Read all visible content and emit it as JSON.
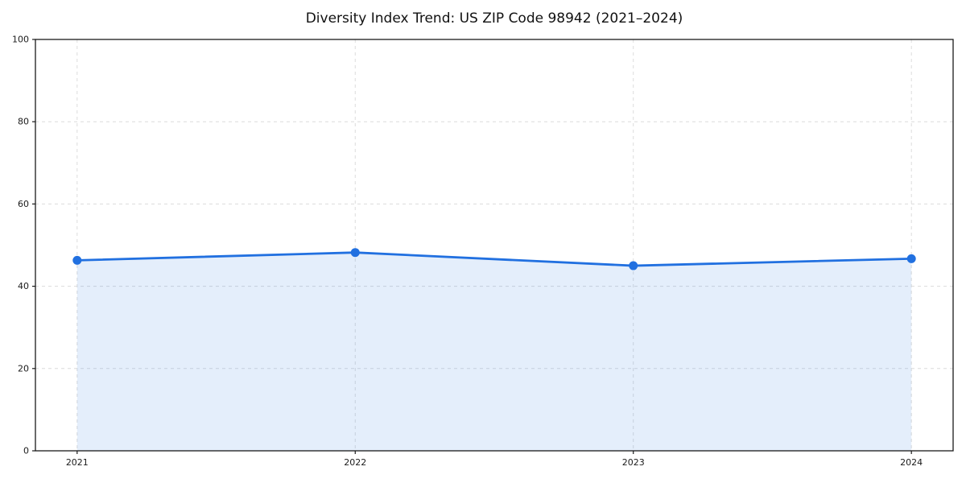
{
  "chart_data": {
    "type": "line",
    "title": "Diversity Index Trend: US ZIP Code 98942 (2021–2024)",
    "series_name": "Diversity Index",
    "x": [
      2021,
      2022,
      2023,
      2024
    ],
    "values": [
      46.3,
      48.2,
      45.0,
      46.7
    ],
    "xlabel": "",
    "ylabel": "",
    "xlim": [
      2020.85,
      2024.15
    ],
    "ylim": [
      0,
      100
    ],
    "yticks": [
      "0",
      "20",
      "40",
      "60",
      "80",
      "100"
    ],
    "ytick_values": [
      0,
      20,
      40,
      60,
      80,
      100
    ],
    "xticks": [
      "2021",
      "2022",
      "2023",
      "2024"
    ],
    "xtick_values": [
      2021,
      2022,
      2023,
      2024
    ],
    "grid": true,
    "grid_style": "dashed",
    "legend": "none",
    "area_fill": true,
    "marker": "circle",
    "colors": {
      "line": "#2170E0",
      "marker": "#2170E0",
      "fill": "rgba(33,112,224,0.12)",
      "grid": "#DCDCDC",
      "spine": "#1A1A1A",
      "text": "#1A1A1A"
    }
  }
}
